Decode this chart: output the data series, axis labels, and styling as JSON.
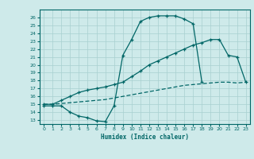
{
  "xlabel": "Humidex (Indice chaleur)",
  "background_color": "#ceeaea",
  "grid_color": "#a8d0d0",
  "line_color": "#006666",
  "xlim": [
    -0.5,
    23.5
  ],
  "ylim": [
    12.5,
    27.0
  ],
  "yticks": [
    13,
    14,
    15,
    16,
    17,
    18,
    19,
    20,
    21,
    22,
    23,
    24,
    25,
    26
  ],
  "xticks": [
    0,
    1,
    2,
    3,
    4,
    5,
    6,
    7,
    8,
    9,
    10,
    11,
    12,
    13,
    14,
    15,
    16,
    17,
    18,
    19,
    20,
    21,
    22,
    23
  ],
  "curve1_x": [
    0,
    1,
    2,
    3,
    4,
    5,
    6,
    7,
    8,
    9,
    10,
    11,
    12,
    13,
    14,
    15,
    16,
    17,
    18
  ],
  "curve1_y": [
    14.8,
    14.8,
    14.8,
    14.0,
    13.5,
    13.3,
    12.9,
    12.8,
    14.8,
    21.2,
    23.2,
    25.5,
    26.0,
    26.2,
    26.2,
    26.2,
    25.8,
    25.2,
    17.8
  ],
  "curve2_x": [
    0,
    1,
    2,
    3,
    4,
    5,
    6,
    7,
    8,
    9,
    10,
    11,
    12,
    13,
    14,
    15,
    16,
    17,
    18,
    19,
    20,
    21,
    22,
    23
  ],
  "curve2_y": [
    15.0,
    15.0,
    15.5,
    16.0,
    16.5,
    16.8,
    17.0,
    17.2,
    17.5,
    17.8,
    18.5,
    19.2,
    20.0,
    20.5,
    21.0,
    21.5,
    22.0,
    22.5,
    22.8,
    23.2,
    23.2,
    21.2,
    21.0,
    17.8
  ],
  "curve3_x": [
    0,
    1,
    2,
    3,
    4,
    5,
    6,
    7,
    8,
    9,
    10,
    11,
    12,
    13,
    14,
    15,
    16,
    17,
    18,
    19,
    20,
    21,
    22,
    23
  ],
  "curve3_y": [
    15.0,
    15.0,
    15.1,
    15.2,
    15.3,
    15.4,
    15.5,
    15.6,
    15.8,
    16.0,
    16.2,
    16.4,
    16.6,
    16.8,
    17.0,
    17.2,
    17.4,
    17.5,
    17.6,
    17.7,
    17.8,
    17.8,
    17.7,
    17.8
  ]
}
